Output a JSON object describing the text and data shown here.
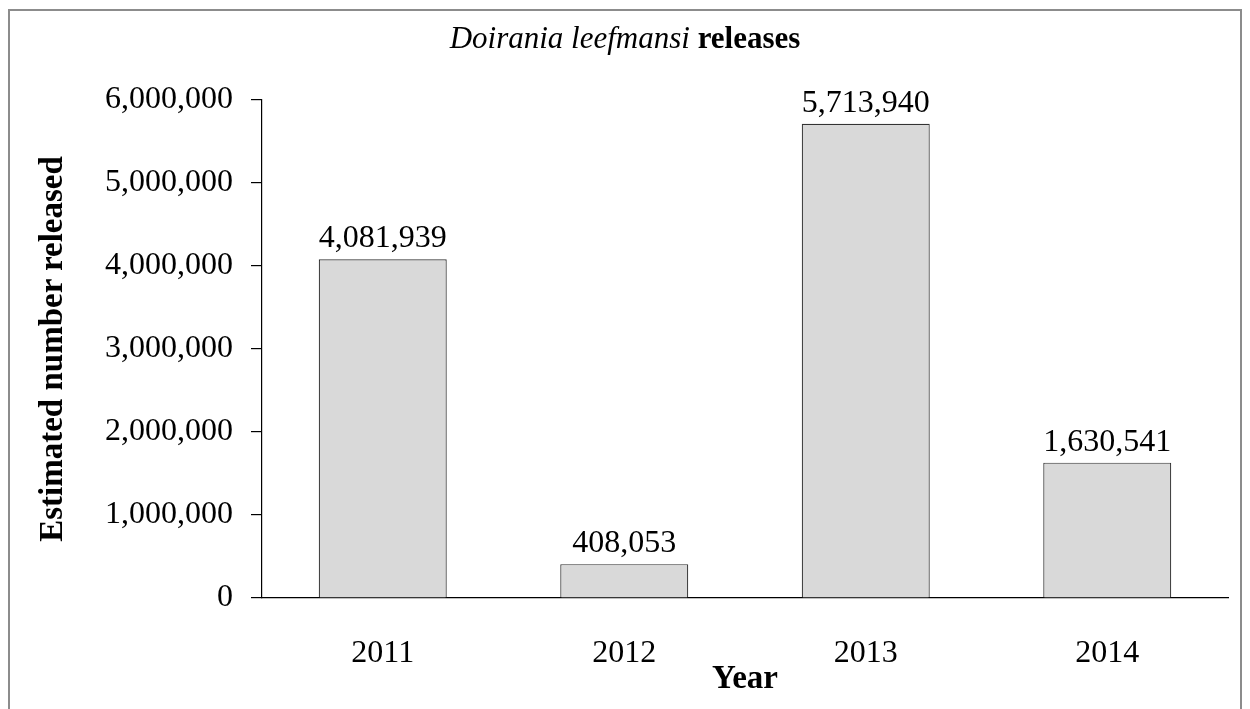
{
  "chart_data": {
    "type": "bar",
    "title": "Doirania leefmansi releases",
    "xlabel": "Year",
    "ylabel": "Estimated number released",
    "categories": [
      "2011",
      "2012",
      "2013",
      "2014"
    ],
    "values": [
      4081939,
      408053,
      5713940,
      1630541
    ],
    "color": "#d9d9d9",
    "value_labels": [
      "4,081,939",
      "408,053",
      "5,713,940",
      "1,630,541"
    ],
    "ylim": [
      0,
      6000000
    ],
    "yticks": [
      0,
      {
        "value": 1000000,
        "label": "1,000,000"
      },
      {
        "value": 2000000,
        "label": "2,000,000"
      },
      {
        "value": 3000000,
        "label": "3,000,000"
      },
      {
        "value": 4000000,
        "label": "4,000,000"
      },
      {
        "value": 5000000,
        "label": "5,000,000"
      },
      {
        "value": 6000000,
        "label": "6,000,000"
      }
    ],
    "grid": false
  }
}
